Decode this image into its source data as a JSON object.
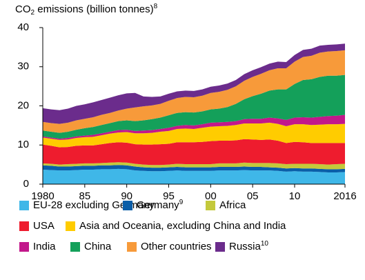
{
  "chart_data": {
    "type": "stacked_area",
    "ylabel_parts": [
      "CO",
      "2",
      " emissions (billion tonnes)",
      "8"
    ],
    "x": [
      1980,
      1981,
      1982,
      1983,
      1984,
      1985,
      1986,
      1987,
      1988,
      1989,
      1990,
      1991,
      1992,
      1993,
      1994,
      1995,
      1996,
      1997,
      1998,
      1999,
      2000,
      2001,
      2002,
      2003,
      2004,
      2005,
      2006,
      2007,
      2008,
      2009,
      2010,
      2011,
      2012,
      2013,
      2014,
      2015,
      2016
    ],
    "xlim": [
      1980,
      2016
    ],
    "xticks": [
      1980,
      {
        "value": 1985,
        "label": "85"
      },
      {
        "value": 1990,
        "label": "90"
      },
      {
        "value": 1995,
        "label": "95"
      },
      {
        "value": 2000,
        "label": "00"
      },
      {
        "value": 2005,
        "label": "05"
      },
      {
        "value": 2010,
        "label": "10"
      },
      2016
    ],
    "ylim": [
      0,
      40
    ],
    "yticks": [
      0,
      10,
      20,
      30,
      40
    ],
    "series": [
      {
        "name": "EU-28 excluding Germany",
        "color": "#3fb7e8",
        "values": [
          3.7,
          3.6,
          3.5,
          3.5,
          3.6,
          3.7,
          3.7,
          3.8,
          3.8,
          3.9,
          3.8,
          3.5,
          3.4,
          3.3,
          3.3,
          3.4,
          3.5,
          3.4,
          3.4,
          3.4,
          3.4,
          3.5,
          3.5,
          3.5,
          3.6,
          3.5,
          3.5,
          3.5,
          3.4,
          3.2,
          3.3,
          3.2,
          3.2,
          3.1,
          3.0,
          3.0,
          3.1
        ]
      },
      {
        "name": "Germany",
        "name_sup": "9",
        "color": "#0a5ea8",
        "values": [
          1.1,
          1.1,
          1.0,
          1.0,
          1.0,
          1.0,
          1.0,
          1.0,
          1.0,
          1.0,
          1.0,
          1.0,
          0.9,
          0.9,
          0.9,
          0.9,
          0.9,
          0.9,
          0.9,
          0.9,
          0.9,
          0.9,
          0.9,
          0.9,
          0.9,
          0.9,
          0.9,
          0.8,
          0.8,
          0.8,
          0.8,
          0.8,
          0.8,
          0.8,
          0.8,
          0.8,
          0.8
        ]
      },
      {
        "name": "Africa",
        "color": "#c4c93b",
        "values": [
          0.5,
          0.5,
          0.5,
          0.6,
          0.6,
          0.6,
          0.6,
          0.6,
          0.7,
          0.7,
          0.7,
          0.7,
          0.7,
          0.7,
          0.7,
          0.7,
          0.8,
          0.8,
          0.8,
          0.8,
          0.8,
          0.9,
          0.9,
          0.9,
          1.0,
          1.0,
          1.0,
          1.1,
          1.1,
          1.1,
          1.1,
          1.2,
          1.2,
          1.2,
          1.2,
          1.3,
          1.3
        ]
      },
      {
        "name": "USA",
        "color": "#ee1c2e",
        "values": [
          4.8,
          4.6,
          4.4,
          4.4,
          4.6,
          4.6,
          4.6,
          4.8,
          5.0,
          5.1,
          5.1,
          5.0,
          5.1,
          5.2,
          5.3,
          5.3,
          5.5,
          5.6,
          5.6,
          5.7,
          5.9,
          5.8,
          5.8,
          5.9,
          6.0,
          6.0,
          5.9,
          6.0,
          5.8,
          5.4,
          5.6,
          5.5,
          5.3,
          5.4,
          5.5,
          5.4,
          5.3
        ]
      },
      {
        "name": "Asia and Oceania, excluding China and India",
        "color": "#ffcc00",
        "values": [
          1.8,
          1.8,
          1.9,
          1.9,
          2.0,
          2.1,
          2.2,
          2.3,
          2.4,
          2.5,
          2.7,
          2.8,
          2.9,
          3.0,
          3.2,
          3.3,
          3.4,
          3.5,
          3.4,
          3.6,
          3.7,
          3.7,
          3.8,
          3.9,
          4.0,
          4.1,
          4.2,
          4.3,
          4.3,
          4.3,
          4.5,
          4.6,
          4.6,
          4.7,
          4.8,
          4.8,
          4.9
        ]
      },
      {
        "name": "India",
        "color": "#c2188b",
        "values": [
          0.3,
          0.3,
          0.3,
          0.4,
          0.4,
          0.4,
          0.5,
          0.5,
          0.5,
          0.6,
          0.6,
          0.6,
          0.7,
          0.7,
          0.7,
          0.8,
          0.8,
          0.9,
          0.9,
          0.9,
          1.0,
          1.0,
          1.0,
          1.0,
          1.1,
          1.2,
          1.2,
          1.3,
          1.4,
          1.6,
          1.7,
          1.8,
          1.9,
          2.0,
          2.1,
          2.2,
          2.3
        ]
      },
      {
        "name": "China",
        "color": "#14a05a",
        "values": [
          1.5,
          1.5,
          1.5,
          1.6,
          1.7,
          1.9,
          2.0,
          2.1,
          2.2,
          2.3,
          2.4,
          2.5,
          2.6,
          2.8,
          2.9,
          3.2,
          3.3,
          3.3,
          3.3,
          3.3,
          3.4,
          3.5,
          3.8,
          4.4,
          5.1,
          5.8,
          6.4,
          6.9,
          7.4,
          7.8,
          8.6,
          9.5,
          9.8,
          10.2,
          10.3,
          10.2,
          10.2
        ]
      },
      {
        "name": "Other countries",
        "color": "#f79a3a",
        "values": [
          2.2,
          2.2,
          2.3,
          2.3,
          2.4,
          2.4,
          2.5,
          2.6,
          2.6,
          2.7,
          3.0,
          3.5,
          3.6,
          3.5,
          3.5,
          3.7,
          3.8,
          3.9,
          3.9,
          4.0,
          4.2,
          4.3,
          4.4,
          4.5,
          4.7,
          4.9,
          5.1,
          5.2,
          5.4,
          5.4,
          5.7,
          5.9,
          6.0,
          6.2,
          6.2,
          6.3,
          6.3
        ]
      },
      {
        "name": "Russia",
        "name_sup": "10",
        "color": "#6b2c8c",
        "values": [
          3.5,
          3.5,
          3.5,
          3.6,
          3.7,
          3.7,
          3.8,
          3.8,
          3.9,
          3.9,
          3.9,
          3.7,
          2.5,
          2.2,
          1.9,
          1.8,
          1.7,
          1.6,
          1.6,
          1.6,
          1.6,
          1.6,
          1.6,
          1.6,
          1.7,
          1.7,
          1.7,
          1.7,
          1.7,
          1.6,
          1.7,
          1.8,
          1.8,
          1.8,
          1.7,
          1.7,
          1.7
        ]
      }
    ]
  }
}
